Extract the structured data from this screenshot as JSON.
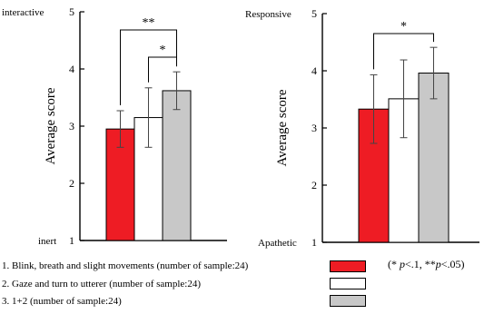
{
  "chart_data": [
    {
      "type": "bar",
      "categories": [
        "1",
        "2",
        "3"
      ],
      "values": [
        2.95,
        3.15,
        3.62
      ],
      "errors": [
        0.32,
        0.52,
        0.33
      ],
      "colors": [
        "#ee1c24",
        "#ffffff",
        "#c8c8c8"
      ],
      "ylim": [
        1,
        5
      ],
      "yticks": [
        "1",
        "2",
        "3",
        "4",
        "5"
      ],
      "ylabel": "Average score",
      "top_label": "interactive",
      "bottom_label": "inert",
      "brackets": [
        {
          "from": 0,
          "to": 2,
          "label": "**"
        },
        {
          "from": 1,
          "to": 2,
          "label": "*"
        }
      ]
    },
    {
      "type": "bar",
      "categories": [
        "1",
        "2",
        "3"
      ],
      "values": [
        3.33,
        3.51,
        3.96
      ],
      "errors": [
        0.6,
        0.68,
        0.45
      ],
      "colors": [
        "#ee1c24",
        "#ffffff",
        "#c8c8c8"
      ],
      "ylim": [
        1,
        5
      ],
      "yticks": [
        "1",
        "2",
        "3",
        "4",
        "5"
      ],
      "ylabel": "Average score",
      "top_label": "Responsive",
      "bottom_label": "Apathetic",
      "brackets": [
        {
          "from": 0,
          "to": 2,
          "label": "*"
        }
      ]
    }
  ],
  "legend": [
    {
      "label": "1. Blink, breath and slight movements (number of sample:24)",
      "color": "#ee1c24"
    },
    {
      "label": "2. Gaze and turn to utterer  (number of sample:24)",
      "color": "#ffffff"
    },
    {
      "label": "3. 1+2  (number of sample:24)",
      "color": "#c8c8c8"
    }
  ],
  "significance_note": "(* p<.1, **p<.05)"
}
